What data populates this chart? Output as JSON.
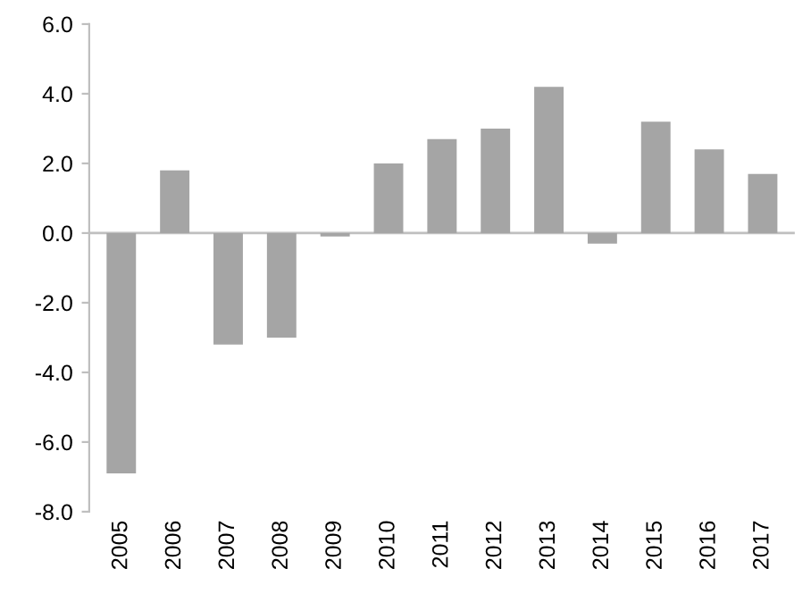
{
  "chart_data": {
    "type": "bar",
    "categories": [
      "2005",
      "2006",
      "2007",
      "2008",
      "2009",
      "2010",
      "2011",
      "2012",
      "2013",
      "2014",
      "2015",
      "2016",
      "2017"
    ],
    "values": [
      -6.9,
      1.8,
      -3.2,
      -3.0,
      -0.1,
      2.0,
      2.7,
      3.0,
      4.2,
      -0.3,
      3.2,
      2.4,
      1.7
    ],
    "color": "#a5a5a5",
    "ylim": [
      -8,
      6
    ],
    "yticks": [
      {
        "value": -8,
        "label": "-8.0"
      },
      {
        "value": -6,
        "label": "-6.0"
      },
      {
        "value": -4,
        "label": "-4.0"
      },
      {
        "value": -2,
        "label": "-2.0"
      },
      {
        "value": 0,
        "label": "0.0"
      },
      {
        "value": 2,
        "label": "2.0"
      },
      {
        "value": 4,
        "label": "4.0"
      },
      {
        "value": 6,
        "label": "6.0"
      }
    ],
    "ref_lines": [
      {
        "axis": "y",
        "value": 0,
        "color": "#bfbfbf",
        "line_style": "solid"
      }
    ],
    "grid": false,
    "legend": false
  }
}
